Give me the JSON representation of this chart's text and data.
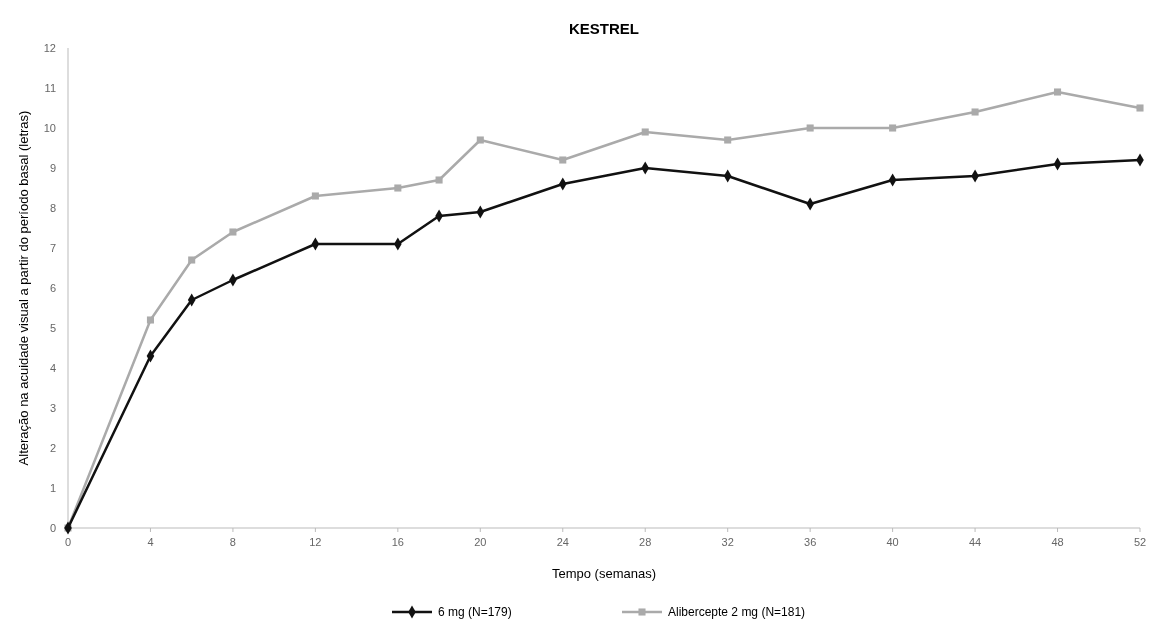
{
  "chart_data": {
    "type": "line",
    "title": "KESTREL",
    "xlabel": "Tempo (semanas)",
    "ylabel": "Alteração na acuidade visual a partir do período basal (letras)",
    "x": [
      0,
      4,
      6,
      8,
      12,
      16,
      18,
      20,
      24,
      28,
      32,
      36,
      40,
      44,
      48,
      52
    ],
    "series": [
      {
        "name": "6 mg (N=179)",
        "color": "#111111",
        "marker": "diamond",
        "values": [
          0,
          4.3,
          5.7,
          6.2,
          7.1,
          7.1,
          7.8,
          7.9,
          8.6,
          9.0,
          8.8,
          8.1,
          8.7,
          8.8,
          9.1,
          9.2
        ]
      },
      {
        "name": "Alibercepte 2 mg (N=181)",
        "color": "#aaaaaa",
        "marker": "square",
        "values": [
          0,
          5.2,
          6.7,
          7.4,
          8.3,
          8.5,
          8.7,
          9.7,
          9.2,
          9.9,
          9.7,
          10.0,
          10.0,
          10.4,
          10.9,
          10.5
        ]
      }
    ],
    "xlim": [
      0,
      52
    ],
    "xticks": [
      0,
      4,
      8,
      12,
      16,
      20,
      24,
      28,
      32,
      36,
      40,
      44,
      48,
      52
    ],
    "ylim": [
      0,
      12
    ],
    "yticks": [
      0,
      1,
      2,
      3,
      4,
      5,
      6,
      7,
      8,
      9,
      10,
      11,
      12
    ],
    "grid": false,
    "legend": "bottom",
    "line_style": "solid"
  }
}
